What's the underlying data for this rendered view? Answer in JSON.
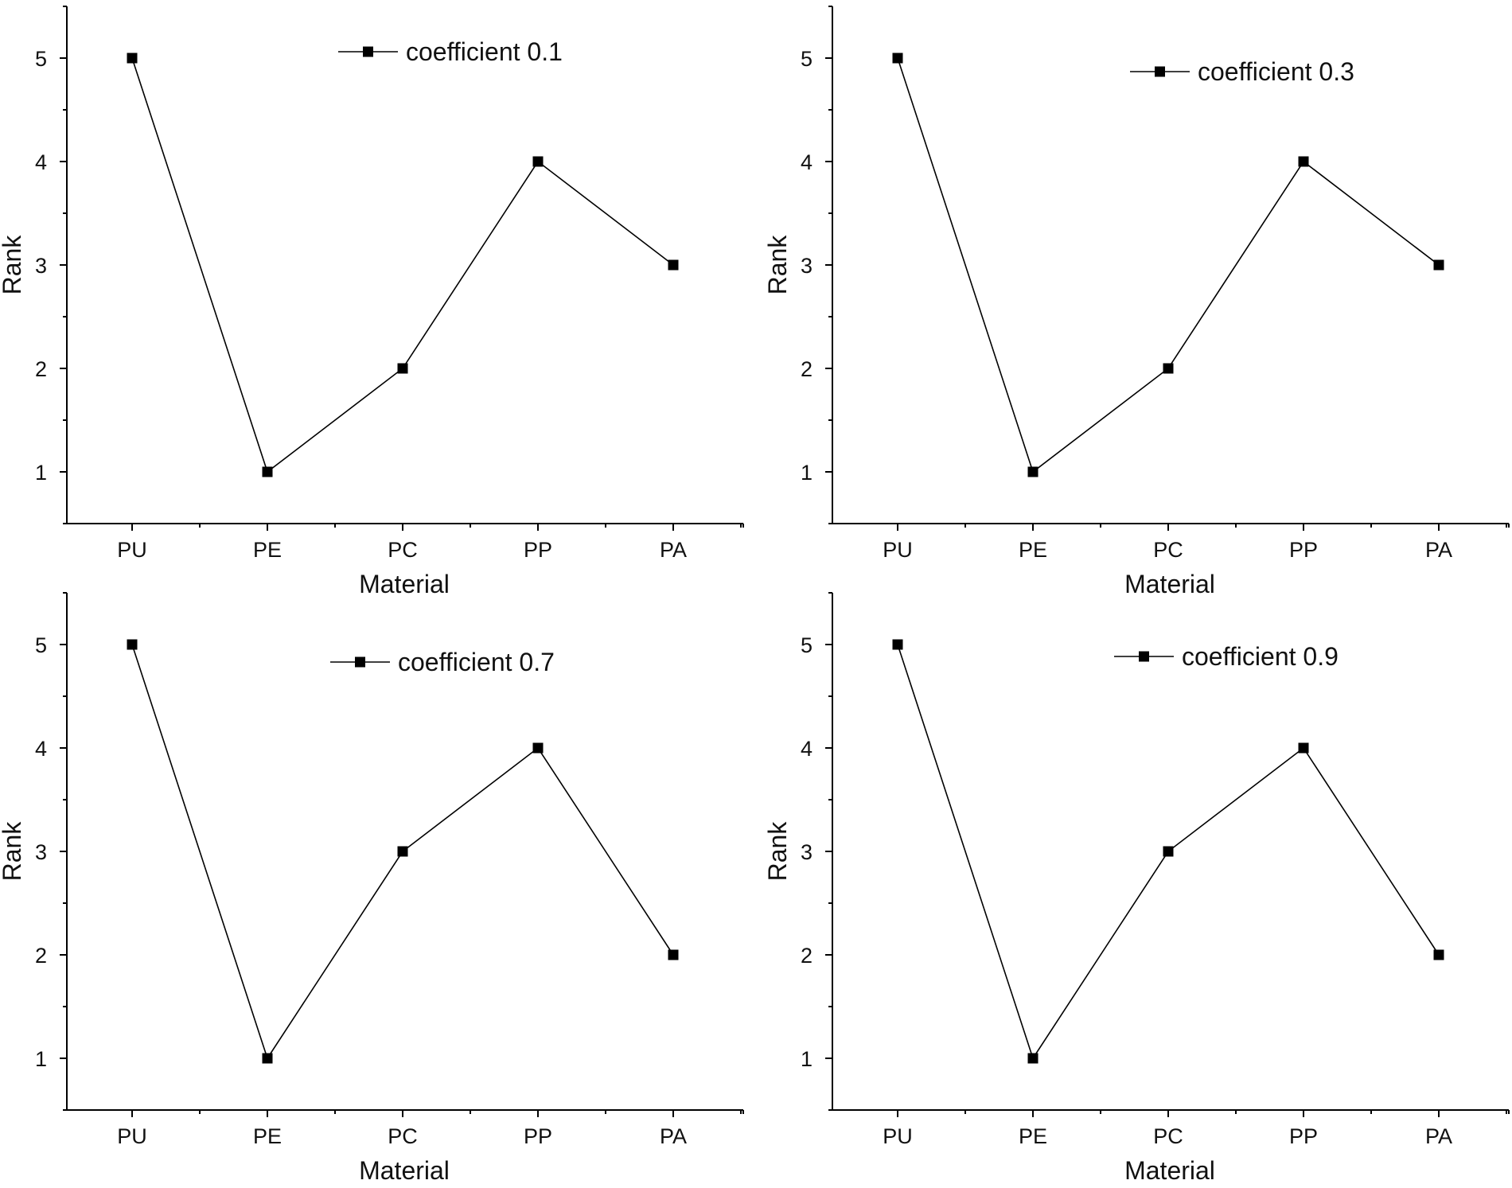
{
  "chart_data": [
    {
      "type": "line",
      "categories": [
        "PU",
        "PE",
        "PC",
        "PP",
        "PA"
      ],
      "series": [
        {
          "name": "coefficient 0.1",
          "values": [
            5,
            1,
            2,
            4,
            3
          ]
        }
      ],
      "xlabel": "Material",
      "ylabel": "Rank",
      "ylim": [
        0.5,
        5.5
      ],
      "yticks": [
        "1",
        "2",
        "3",
        "4",
        "5"
      ],
      "legend_position": "top-center",
      "grid": false
    },
    {
      "type": "line",
      "categories": [
        "PU",
        "PE",
        "PC",
        "PP",
        "PA"
      ],
      "series": [
        {
          "name": "coefficient 0.3",
          "values": [
            5,
            1,
            2,
            4,
            3
          ]
        }
      ],
      "xlabel": "Material",
      "ylabel": "Rank",
      "ylim": [
        0.5,
        5.5
      ],
      "yticks": [
        "1",
        "2",
        "3",
        "4",
        "5"
      ],
      "legend_position": "top-center",
      "grid": false
    },
    {
      "type": "line",
      "categories": [
        "PU",
        "PE",
        "PC",
        "PP",
        "PA"
      ],
      "series": [
        {
          "name": "coefficient 0.7",
          "values": [
            5,
            1,
            3,
            4,
            2
          ]
        }
      ],
      "xlabel": "Material",
      "ylabel": "Rank",
      "ylim": [
        0.5,
        5.5
      ],
      "yticks": [
        "1",
        "2",
        "3",
        "4",
        "5"
      ],
      "legend_position": "top-center",
      "grid": false
    },
    {
      "type": "line",
      "categories": [
        "PU",
        "PE",
        "PC",
        "PP",
        "PA"
      ],
      "series": [
        {
          "name": "coefficient 0.9",
          "values": [
            5,
            1,
            3,
            4,
            2
          ]
        }
      ],
      "xlabel": "Material",
      "ylabel": "Rank",
      "ylim": [
        0.5,
        5.5
      ],
      "yticks": [
        "1",
        "2",
        "3",
        "4",
        "5"
      ],
      "legend_position": "top-center",
      "grid": false
    }
  ]
}
